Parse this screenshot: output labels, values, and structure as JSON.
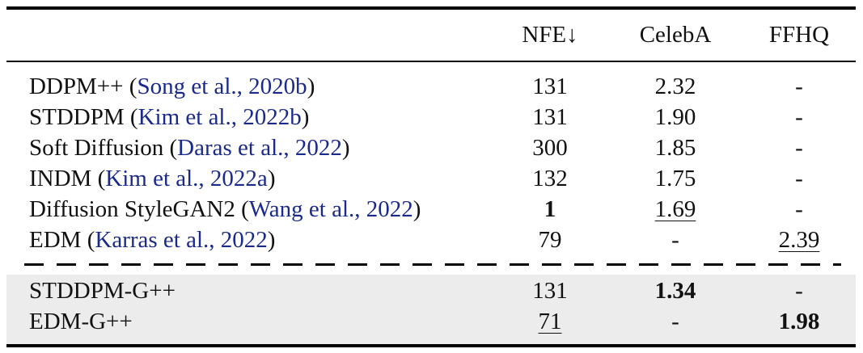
{
  "header": {
    "method": "",
    "nfe": "NFE↓",
    "celeba": "CelebA",
    "ffhq": "FFHQ"
  },
  "rows": [
    {
      "method": "DDPM++",
      "open": " (",
      "cite": "Song et al., 2020b",
      "close": ")",
      "nfe": "131",
      "celeba": "2.32",
      "ffhq": "-"
    },
    {
      "method": "STDDPM",
      "open": " (",
      "cite": "Kim et al., 2022b",
      "close": ")",
      "nfe": "131",
      "celeba": "1.90",
      "ffhq": "-"
    },
    {
      "method": "Soft Diffusion",
      "open": " (",
      "cite": "Daras et al., 2022",
      "close": ")",
      "nfe": "300",
      "celeba": "1.85",
      "ffhq": "-"
    },
    {
      "method": "INDM",
      "open": " (",
      "cite": "Kim et al., 2022a",
      "close": ")",
      "nfe": "132",
      "celeba": "1.75",
      "ffhq": "-"
    },
    {
      "method": "Diffusion StyleGAN2",
      "open": " (",
      "cite": "Wang et al., 2022",
      "close": ")",
      "nfe": "1",
      "celeba": "1.69",
      "ffhq": "-"
    },
    {
      "method": "EDM",
      "open": " (",
      "cite": "Karras et al., 2022",
      "close": ")",
      "nfe": "79",
      "celeba": "-",
      "ffhq": "2.39"
    }
  ],
  "ours": [
    {
      "method": "STDDPM-G++",
      "nfe": "131",
      "celeba": "1.34",
      "ffhq": "-"
    },
    {
      "method": "EDM-G++",
      "nfe": "71",
      "celeba": "-",
      "ffhq": "1.98"
    }
  ]
}
